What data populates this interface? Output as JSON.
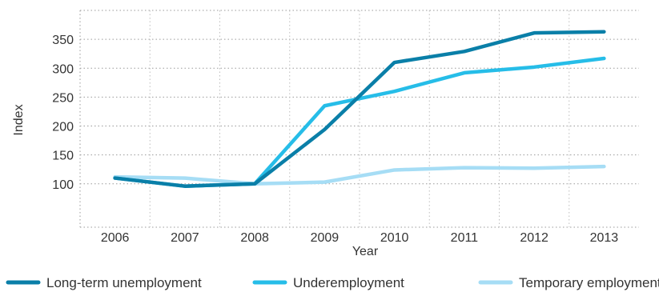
{
  "chart_data": {
    "type": "line",
    "title": "",
    "xlabel": "Year",
    "ylabel": "Index",
    "categories": [
      "2006",
      "2007",
      "2008",
      "2009",
      "2010",
      "2011",
      "2012",
      "2013"
    ],
    "yticks": [
      "100",
      "150",
      "200",
      "250",
      "300",
      "350"
    ],
    "ylim": [
      25,
      400
    ],
    "grid": true,
    "legend_position": "bottom",
    "series": [
      {
        "name": "Long-term unemployment",
        "color": "#0a7fa8",
        "values": [
          110,
          96,
          100,
          194,
          310,
          329,
          361,
          363
        ]
      },
      {
        "name": "Underemployment",
        "color": "#26bde8",
        "values": [
          110,
          96,
          100,
          235,
          260,
          292,
          302,
          317
        ]
      },
      {
        "name": "Temporary employment",
        "color": "#a6ddf5",
        "values": [
          112,
          110,
          100,
          103,
          124,
          128,
          127,
          130
        ]
      }
    ]
  }
}
